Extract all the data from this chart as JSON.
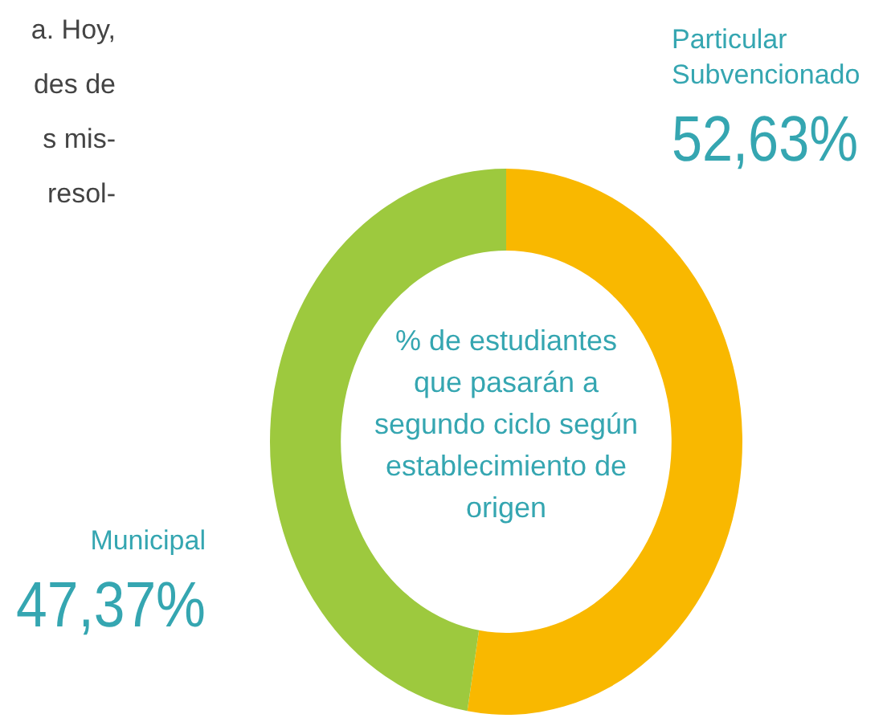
{
  "chart_data": {
    "type": "donut",
    "title": "% de estudiantes\nque pasarán a\nsegundo ciclo según\nestablecimiento de\norigen",
    "categories": [
      "Particular Subvencionado",
      "Municipal"
    ],
    "values": [
      52.63,
      47.37
    ],
    "colors": [
      "#f9b800",
      "#9dc93e"
    ],
    "value_labels": [
      "52,63%",
      "47,37%"
    ],
    "annotations": [
      "a. Hoy,",
      "des de",
      "s mis-",
      "resol-"
    ]
  }
}
